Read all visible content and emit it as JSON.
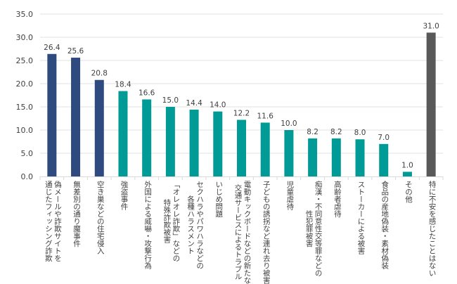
{
  "chart_data": {
    "type": "bar",
    "title": "",
    "xlabel": "",
    "ylabel": "",
    "ylim": [
      0,
      35
    ],
    "yticks": [
      "0.0",
      "5.0",
      "10.0",
      "15.0",
      "20.0",
      "25.0",
      "30.0",
      "35.0"
    ],
    "grid": true,
    "legend": "none",
    "categories": [
      [
        "偽メールや詐欺サイトを",
        "通じたフィッシング詐欺"
      ],
      [
        "無差別の通り魔事件"
      ],
      [
        "空き巣などの住宅侵入"
      ],
      [
        "強盗事件"
      ],
      [
        "外国による威嚇・攻撃行為"
      ],
      [
        "「オレオレ詐欺」などの",
        "特殊詐欺被害"
      ],
      [
        "セクハラやパワハラなどの",
        "各種ハラスメント"
      ],
      [
        "いじめ問題"
      ],
      [
        "電動キックボードなどの新たな",
        "交通サービスによるトラブル"
      ],
      [
        "子どもの誘拐など連れ去り被害"
      ],
      [
        "児童虐待"
      ],
      [
        "痴漢・不同意性交等罪などの",
        "性犯罪被害"
      ],
      [
        "高齢者虐待"
      ],
      [
        "ストーカーによる被害"
      ],
      [
        "食品の産地偽装・素材偽装"
      ],
      [
        "その他"
      ],
      [
        "特に不安を感じたことはない"
      ]
    ],
    "values": [
      26.4,
      25.6,
      20.8,
      18.4,
      16.6,
      15.0,
      14.4,
      14.0,
      12.2,
      11.6,
      10.0,
      8.2,
      8.2,
      8.0,
      7.0,
      1.0,
      31.0
    ],
    "value_labels": [
      "26.4",
      "25.6",
      "20.8",
      "18.4",
      "16.6",
      "15.0",
      "14.4",
      "14.0",
      "12.2",
      "11.6",
      "10.0",
      "8.2",
      "8.2",
      "8.0",
      "7.0",
      "1.0",
      "31.0"
    ],
    "bar_groups": [
      "navy",
      "navy",
      "navy",
      "teal",
      "teal",
      "teal",
      "teal",
      "teal",
      "teal",
      "teal",
      "teal",
      "teal",
      "teal",
      "teal",
      "teal",
      "teal",
      "gray"
    ],
    "colors": {
      "navy": "#2E4A7F",
      "teal": "#009B96",
      "gray": "#595959",
      "grid": "#E6E6E6",
      "axis": "#D9D9D9"
    }
  }
}
